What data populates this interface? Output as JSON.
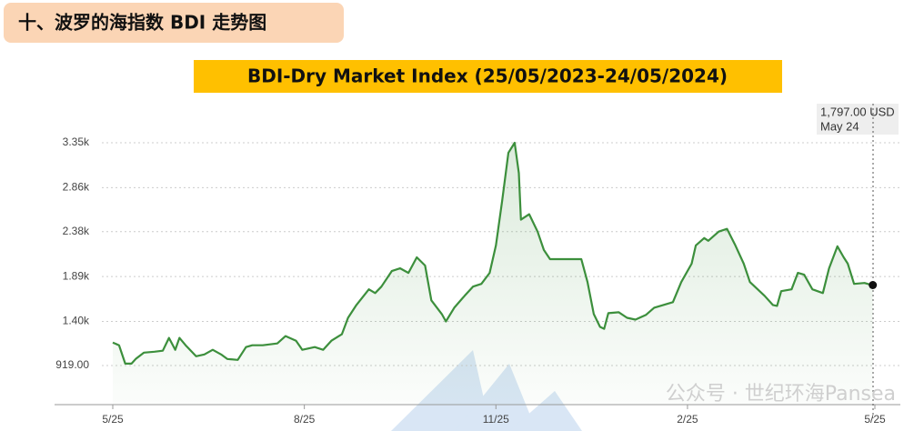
{
  "header": "十、波罗的海指数 BDI 走势图",
  "chart_data": {
    "type": "line",
    "title": "BDI-Dry Market Index (25/05/2023-24/05/2024)",
    "color": "#3c8f3c",
    "grid": true,
    "x": [
      0,
      3,
      6,
      9,
      11,
      15,
      20,
      24,
      27,
      30,
      32,
      35,
      40,
      44,
      48,
      52,
      55,
      60,
      64,
      67,
      72,
      79,
      83,
      88,
      91,
      97,
      101,
      105,
      110,
      113,
      117,
      123,
      126,
      129,
      134,
      138,
      142,
      146,
      150,
      153,
      158,
      160,
      164,
      169,
      173,
      177,
      181,
      184,
      187,
      190,
      193,
      195,
      196,
      200,
      204,
      207,
      210,
      225,
      228,
      231,
      234,
      236,
      238,
      243,
      247,
      251,
      256,
      260,
      269,
      273,
      278,
      280,
      284,
      286,
      291,
      295,
      299,
      303,
      306,
      313,
      317,
      319,
      321,
      326,
      329,
      332,
      336,
      341,
      344,
      348,
      351,
      353,
      356,
      361,
      364,
      365
    ],
    "values": [
      1170,
      1140,
      940,
      940,
      990,
      1060,
      1070,
      1080,
      1220,
      1090,
      1220,
      1140,
      1020,
      1040,
      1090,
      1040,
      990,
      980,
      1120,
      1140,
      1140,
      1160,
      1240,
      1190,
      1090,
      1120,
      1090,
      1190,
      1260,
      1440,
      1580,
      1750,
      1710,
      1780,
      1950,
      1980,
      1930,
      2100,
      2010,
      1630,
      1480,
      1400,
      1550,
      1680,
      1780,
      1810,
      1930,
      2230,
      2720,
      3240,
      3350,
      3020,
      2510,
      2570,
      2380,
      2180,
      2080,
      2080,
      1830,
      1480,
      1340,
      1320,
      1490,
      1500,
      1440,
      1420,
      1470,
      1550,
      1610,
      1830,
      2030,
      2230,
      2310,
      2280,
      2380,
      2410,
      2230,
      2030,
      1830,
      1680,
      1580,
      1570,
      1730,
      1750,
      1930,
      1910,
      1750,
      1710,
      1980,
      2220,
      2100,
      2030,
      1810,
      1820,
      1800,
      1797
    ],
    "xlim": [
      0,
      366
    ],
    "xticks": [
      {
        "value": 0,
        "label": "5/25"
      },
      {
        "value": 92,
        "label": "8/25"
      },
      {
        "value": 184,
        "label": "11/25"
      },
      {
        "value": 276,
        "label": "2/25"
      },
      {
        "value": 366,
        "label": "5/25"
      }
    ],
    "ylim": [
      492,
      3737
    ],
    "yticks": [
      {
        "value": 919,
        "label": "919.00"
      },
      {
        "value": 1400,
        "label": "1.40k"
      },
      {
        "value": 1890,
        "label": "1.89k"
      },
      {
        "value": 2380,
        "label": "2.38k"
      },
      {
        "value": 2860,
        "label": "2.86k"
      },
      {
        "value": 3350,
        "label": "3.35k"
      }
    ],
    "annotation": {
      "price": "1,797.00 USD",
      "date": "May 24"
    },
    "watermark": "公众号 · 世纪环海Pansea"
  }
}
